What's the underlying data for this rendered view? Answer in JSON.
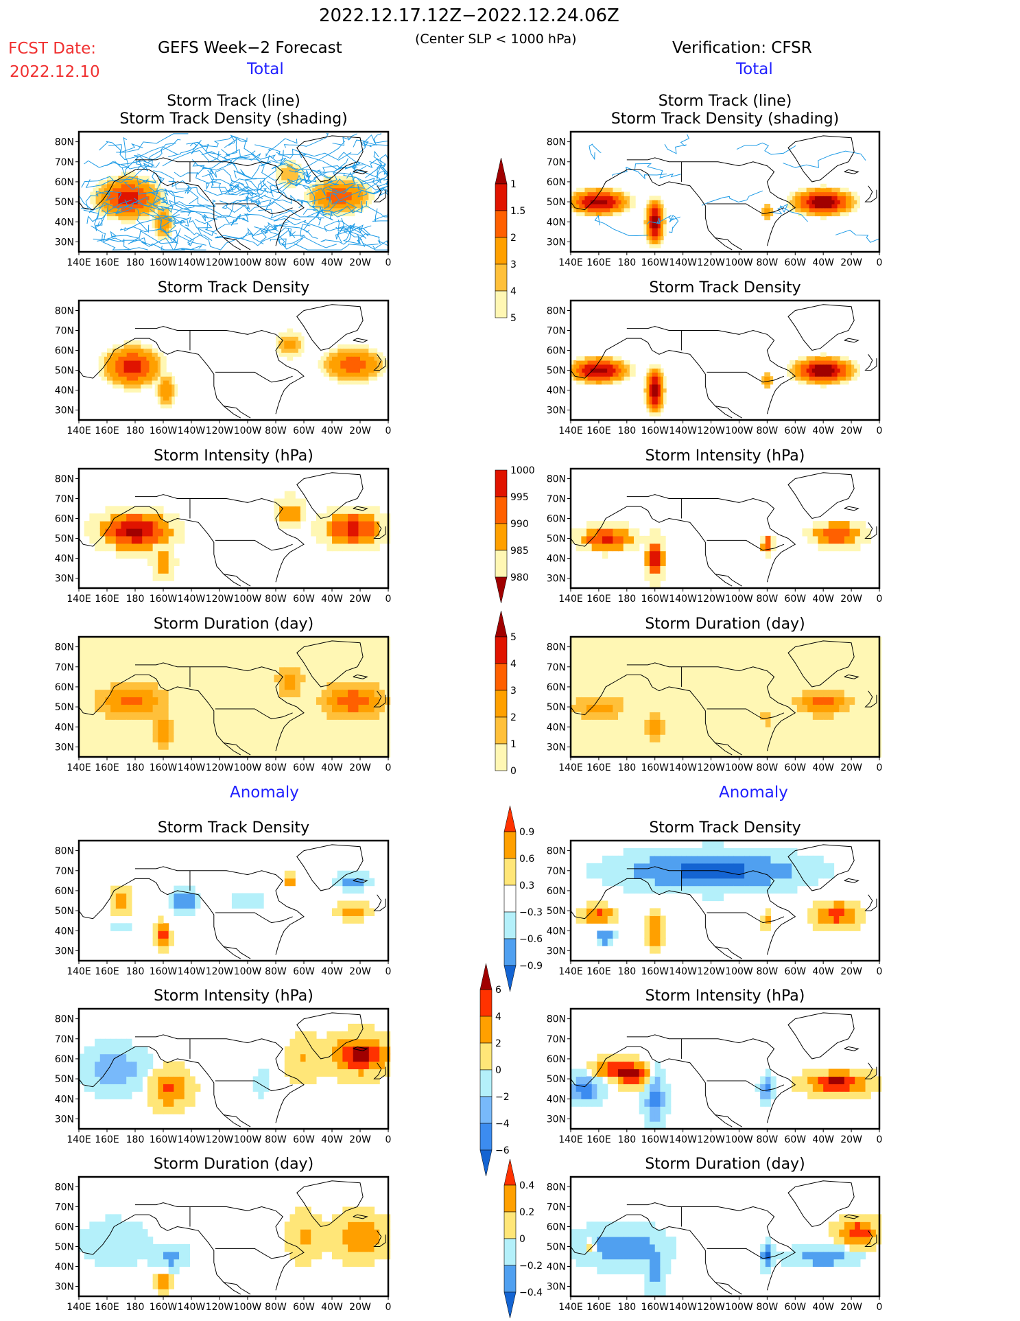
{
  "header": {
    "period": "2022.12.17.12Z−2022.12.24.06Z",
    "criterion": "(Center SLP < 1000 hPa)",
    "fcst_date_label": "FCST Date:",
    "fcst_date": "2022.12.10",
    "left_source": "GEFS Week−2 Forecast",
    "right_source": "Verification: CFSR",
    "total_label": "Total",
    "anomaly_label": "Anomaly"
  },
  "axes": {
    "lon_ticks": [
      "140E",
      "160E",
      "180",
      "160W",
      "140W",
      "120W",
      "100W",
      "80W",
      "60W",
      "40W",
      "20W",
      "0"
    ],
    "lat_ticks": [
      "80N",
      "70N",
      "60N",
      "50N",
      "40N",
      "30N"
    ]
  },
  "colors": {
    "dens_total": [
      "#fff7b4",
      "#ffc03a",
      "#ffa000",
      "#ff6000",
      "#e01400",
      "#a00000"
    ],
    "anom": [
      "#1464d2",
      "#50a0f0",
      "#b4f0fa",
      "#ffffff",
      "#ffe678",
      "#ffa000",
      "#ff3200"
    ],
    "anom_int": [
      "#1464d2",
      "#3c8cf0",
      "#78b9fa",
      "#b4f0fa",
      "#ffe678",
      "#ffa000",
      "#ff3200",
      "#a00000"
    ],
    "track_line": "#1e9be6"
  },
  "colorbars": [
    {
      "name": "density-total",
      "levels": [
        "1",
        "1.5",
        "2",
        "3",
        "4",
        "5"
      ]
    },
    {
      "name": "intensity-total",
      "levels": [
        "1000",
        "995",
        "990",
        "985",
        "980"
      ]
    },
    {
      "name": "duration-total",
      "levels": [
        "5",
        "4",
        "3",
        "2",
        "1",
        "0"
      ]
    },
    {
      "name": "density-anomaly",
      "levels": [
        "0.9",
        "0.6",
        "0.3",
        "−0.3",
        "−0.6",
        "−0.9"
      ]
    },
    {
      "name": "intensity-anomaly",
      "levels": [
        "6",
        "4",
        "2",
        "0",
        "−2",
        "−4",
        "−6"
      ]
    },
    {
      "name": "duration-anomaly",
      "levels": [
        "0.4",
        "0.2",
        "0",
        "−0.2",
        "−0.4"
      ]
    }
  ],
  "chart_data": [
    {
      "type": "heatmap",
      "panel": "forecast-total-track",
      "title": "Storm Track (line)\nStorm Track Density (shading)",
      "lines": [
        "Storm Track (line)",
        "Storm Track Density (shading)"
      ],
      "field": "dens",
      "blobs": [
        [
          175,
          52,
          22,
          10,
          4.5
        ],
        [
          200,
          40,
          8,
          10,
          2.5
        ],
        [
          325,
          53,
          22,
          9,
          3.5
        ],
        [
          290,
          64,
          12,
          8,
          2.0
        ]
      ],
      "tracks": "many"
    },
    {
      "type": "heatmap",
      "panel": "verif-total-track",
      "title": "Storm Track (line)\nStorm Track Density (shading)",
      "lines": [
        "Storm Track (line)",
        "Storm Track Density (shading)"
      ],
      "field": "dens",
      "blobs": [
        [
          160,
          50,
          20,
          6,
          5.5
        ],
        [
          200,
          40,
          6,
          10,
          6
        ],
        [
          280,
          45,
          4,
          4,
          3
        ],
        [
          320,
          50,
          20,
          6,
          6
        ]
      ],
      "tracks": "few"
    },
    {
      "type": "heatmap",
      "panel": "forecast-total-density",
      "title": "Storm Track Density",
      "field": "dens",
      "blobs": [
        [
          178,
          52,
          20,
          10,
          4.5
        ],
        [
          202,
          40,
          8,
          10,
          2.5
        ],
        [
          335,
          53,
          22,
          9,
          3.5
        ],
        [
          290,
          63,
          12,
          8,
          2.2
        ]
      ]
    },
    {
      "type": "heatmap",
      "panel": "verif-total-density",
      "title": "Storm Track Density",
      "field": "dens",
      "blobs": [
        [
          160,
          50,
          20,
          6,
          5.5
        ],
        [
          200,
          40,
          6,
          10,
          6
        ],
        [
          280,
          45,
          4,
          4,
          3
        ],
        [
          320,
          50,
          20,
          6,
          6
        ]
      ]
    },
    {
      "type": "heatmap",
      "panel": "forecast-total-intensity",
      "title": "Storm Intensity (hPa)",
      "field": "int",
      "blobs": [
        [
          180,
          54,
          25,
          9,
          979
        ],
        [
          335,
          55,
          22,
          9,
          983
        ],
        [
          290,
          63,
          10,
          8,
          991
        ],
        [
          200,
          38,
          8,
          8,
          990
        ]
      ]
    },
    {
      "type": "heatmap",
      "panel": "verif-total-intensity",
      "title": "Storm Intensity (hPa)",
      "field": "int",
      "blobs": [
        [
          165,
          50,
          20,
          6,
          984
        ],
        [
          200,
          40,
          6,
          10,
          982
        ],
        [
          280,
          47,
          4,
          4,
          983
        ],
        [
          330,
          52,
          18,
          6,
          985
        ]
      ]
    },
    {
      "type": "heatmap",
      "panel": "forecast-total-duration",
      "title": "Storm Duration (day)",
      "field": "dur",
      "blobs": [
        [
          178,
          53,
          25,
          9,
          3.3
        ],
        [
          335,
          53,
          22,
          9,
          3.7
        ],
        [
          290,
          63,
          10,
          8,
          2.6
        ],
        [
          200,
          38,
          8,
          8,
          2.8
        ]
      ]
    },
    {
      "type": "heatmap",
      "panel": "verif-total-duration",
      "title": "Storm Duration (day)",
      "field": "dur",
      "blobs": [
        [
          160,
          50,
          20,
          6,
          2.5
        ],
        [
          200,
          40,
          6,
          10,
          2.5
        ],
        [
          280,
          45,
          4,
          4,
          2.0
        ],
        [
          320,
          52,
          20,
          6,
          3.5
        ]
      ]
    },
    {
      "type": "heatmap",
      "panel": "forecast-anom-density",
      "title": "Storm Track Density",
      "field": "anom",
      "blobs": [
        [
          170,
          55,
          8,
          8,
          1.0
        ],
        [
          200,
          38,
          6,
          8,
          1.0
        ],
        [
          215,
          55,
          12,
          8,
          -0.9
        ],
        [
          170,
          42,
          10,
          4,
          -0.6
        ],
        [
          335,
          50,
          14,
          5,
          0.9
        ],
        [
          290,
          65,
          6,
          5,
          0.7
        ],
        [
          335,
          65,
          14,
          6,
          -0.8
        ],
        [
          260,
          55,
          14,
          8,
          -0.5
        ]
      ]
    },
    {
      "type": "heatmap",
      "panel": "verif-anom-density",
      "title": "Storm Track Density",
      "field": "anom",
      "blobs": [
        [
          240,
          70,
          80,
          12,
          -1.0
        ],
        [
          160,
          48,
          15,
          6,
          1.0
        ],
        [
          200,
          40,
          6,
          12,
          1.0
        ],
        [
          330,
          48,
          20,
          8,
          1.0
        ],
        [
          165,
          38,
          8,
          6,
          -0.9
        ],
        [
          280,
          45,
          4,
          5,
          0.9
        ]
      ]
    },
    {
      "type": "heatmap",
      "panel": "forecast-anom-intensity",
      "title": "Storm Intensity (hPa)",
      "field": "anom_int",
      "blobs": [
        [
          165,
          55,
          18,
          9,
          -4
        ],
        [
          205,
          45,
          12,
          8,
          4.5
        ],
        [
          340,
          62,
          18,
          8,
          7
        ],
        [
          300,
          60,
          10,
          10,
          2
        ],
        [
          270,
          48,
          6,
          6,
          -1
        ]
      ]
    },
    {
      "type": "heatmap",
      "panel": "verif-anom-intensity",
      "title": "Storm Intensity (hPa)",
      "field": "anom_int",
      "blobs": [
        [
          170,
          55,
          12,
          4,
          6
        ],
        [
          150,
          45,
          10,
          6,
          -6
        ],
        [
          200,
          40,
          6,
          12,
          -5
        ],
        [
          185,
          52,
          10,
          5,
          7
        ],
        [
          280,
          45,
          4,
          5,
          -6
        ],
        [
          330,
          48,
          18,
          5,
          7
        ]
      ]
    },
    {
      "type": "heatmap",
      "panel": "forecast-anom-duration",
      "title": "Storm Duration (day)",
      "field": "anom_dur",
      "blobs": [
        [
          165,
          52,
          20,
          10,
          -0.15
        ],
        [
          205,
          45,
          10,
          5,
          -0.3
        ],
        [
          200,
          32,
          5,
          4,
          0.5
        ],
        [
          340,
          55,
          16,
          9,
          0.4
        ],
        [
          300,
          55,
          10,
          10,
          0.25
        ]
      ]
    },
    {
      "type": "heatmap",
      "panel": "verif-anom-duration",
      "title": "Storm Duration (day)",
      "field": "anom_dur",
      "blobs": [
        [
          175,
          50,
          25,
          8,
          -0.4
        ],
        [
          200,
          38,
          6,
          10,
          -0.3
        ],
        [
          280,
          45,
          4,
          5,
          -0.5
        ],
        [
          320,
          45,
          20,
          4,
          -0.4
        ],
        [
          345,
          57,
          12,
          6,
          0.6
        ],
        [
          155,
          50,
          5,
          4,
          0.3
        ]
      ]
    }
  ]
}
